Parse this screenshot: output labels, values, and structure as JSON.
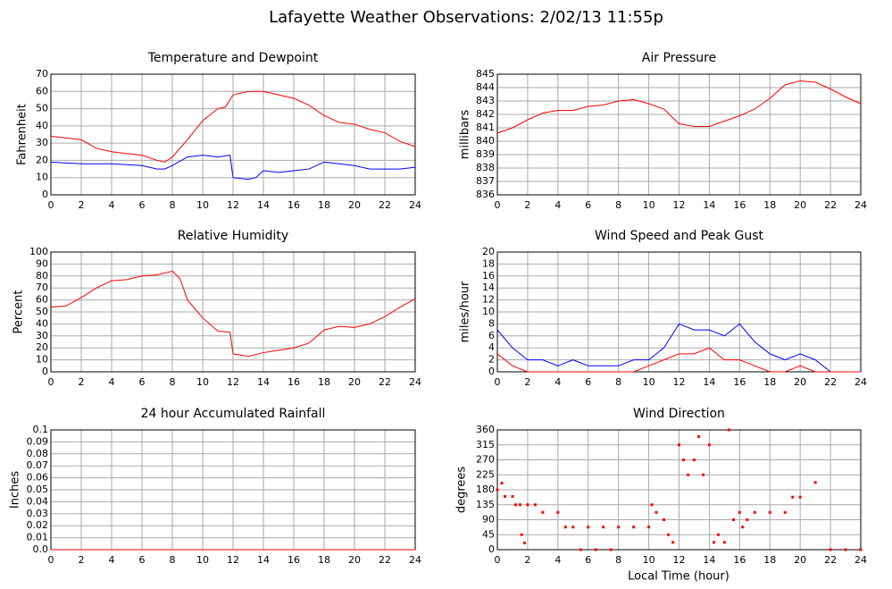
{
  "title": "Lafayette Weather Observations: 2/02/13 11:55p",
  "x_label": "Local Time (hour)",
  "chart_data": [
    {
      "type": "line",
      "title": "Temperature and Dewpoint",
      "y_label": "Fahrenheit",
      "xlim": [
        0,
        24
      ],
      "xticks": [
        0,
        2,
        4,
        6,
        8,
        10,
        12,
        14,
        16,
        18,
        20,
        22,
        24
      ],
      "ylim": [
        0,
        70
      ],
      "yticks": [
        0,
        10,
        20,
        30,
        40,
        50,
        60,
        70
      ],
      "grid": true,
      "series": [
        {
          "color": "#ff0000",
          "x": [
            0,
            1,
            2,
            3,
            4,
            5,
            6,
            7,
            7.5,
            8,
            9,
            10,
            11,
            11.5,
            12,
            13,
            14,
            15,
            16,
            17,
            18,
            19,
            20,
            21,
            22,
            23,
            24
          ],
          "values": [
            34,
            33,
            32,
            27,
            25,
            24,
            23,
            20,
            19,
            22,
            32,
            43,
            50,
            51,
            58,
            60,
            60,
            58,
            56,
            52,
            46,
            42,
            41,
            38,
            36,
            31,
            28
          ]
        },
        {
          "color": "#0000ff",
          "x": [
            0,
            2,
            4,
            6,
            7,
            7.5,
            8,
            9,
            10,
            11,
            11.8,
            12,
            13,
            13.5,
            14,
            15,
            16,
            17,
            18,
            19,
            20,
            21,
            22,
            23,
            24
          ],
          "values": [
            19,
            18,
            18,
            17,
            15,
            15,
            17,
            22,
            23,
            22,
            23,
            10,
            9,
            10,
            14,
            13,
            14,
            15,
            19,
            18,
            17,
            15,
            15,
            15,
            16
          ]
        }
      ]
    },
    {
      "type": "line",
      "title": "Air Pressure",
      "y_label": "millibars",
      "xlim": [
        0,
        24
      ],
      "xticks": [
        0,
        2,
        4,
        6,
        8,
        10,
        12,
        14,
        16,
        18,
        20,
        22,
        24
      ],
      "ylim": [
        836,
        845
      ],
      "yticks": [
        836,
        837,
        838,
        839,
        840,
        841,
        842,
        843,
        844,
        845
      ],
      "grid": true,
      "series": [
        {
          "color": "#ff0000",
          "x": [
            0,
            1,
            2,
            3,
            4,
            5,
            6,
            7,
            8,
            9,
            10,
            11,
            12,
            13,
            14,
            15,
            16,
            17,
            18,
            19,
            20,
            21,
            22,
            23,
            24
          ],
          "values": [
            840.6,
            841.0,
            841.6,
            842.1,
            842.3,
            842.3,
            842.6,
            842.7,
            843.0,
            843.1,
            842.8,
            842.4,
            841.3,
            841.1,
            841.1,
            841.5,
            841.9,
            842.4,
            843.2,
            844.2,
            844.5,
            844.4,
            843.9,
            843.3,
            842.8
          ]
        }
      ]
    },
    {
      "type": "line",
      "title": "Relative Humidity",
      "y_label": "Percent",
      "xlim": [
        0,
        24
      ],
      "xticks": [
        0,
        2,
        4,
        6,
        8,
        10,
        12,
        14,
        16,
        18,
        20,
        22,
        24
      ],
      "ylim": [
        0,
        100
      ],
      "yticks": [
        0,
        10,
        20,
        30,
        40,
        50,
        60,
        70,
        80,
        90,
        100
      ],
      "grid": true,
      "series": [
        {
          "color": "#ff0000",
          "x": [
            0,
            1,
            2,
            3,
            4,
            5,
            6,
            7,
            8,
            8.5,
            9,
            10,
            11,
            11.8,
            12,
            13,
            14,
            15,
            16,
            17,
            18,
            19,
            20,
            21,
            22,
            23,
            24
          ],
          "values": [
            54,
            55,
            62,
            70,
            76,
            77,
            80,
            81,
            84,
            78,
            60,
            45,
            34,
            33,
            15,
            13,
            16,
            18,
            20,
            24,
            35,
            38,
            37,
            40,
            46,
            54,
            61
          ]
        }
      ]
    },
    {
      "type": "line",
      "title": "Wind Speed and Peak Gust",
      "y_label": "miles/hour",
      "xlim": [
        0,
        24
      ],
      "xticks": [
        0,
        2,
        4,
        6,
        8,
        10,
        12,
        14,
        16,
        18,
        20,
        22,
        24
      ],
      "ylim": [
        0,
        20
      ],
      "yticks": [
        0,
        2,
        4,
        6,
        8,
        10,
        12,
        14,
        16,
        18,
        20
      ],
      "grid": true,
      "series": [
        {
          "color": "#0000ff",
          "x": [
            0,
            1,
            2,
            3,
            4,
            5,
            6,
            7,
            8,
            9,
            10,
            11,
            12,
            13,
            14,
            15,
            16,
            17,
            18,
            19,
            20,
            21,
            22,
            23,
            24
          ],
          "values": [
            7,
            4,
            2,
            2,
            1,
            2,
            1,
            1,
            1,
            2,
            2,
            4,
            8,
            7,
            7,
            6,
            8,
            5,
            3,
            2,
            3,
            2,
            0,
            0,
            0
          ]
        },
        {
          "color": "#ff0000",
          "x": [
            0,
            1,
            2,
            3,
            4,
            5,
            6,
            7,
            8,
            9,
            10,
            11,
            12,
            13,
            14,
            15,
            16,
            17,
            18,
            19,
            20,
            21,
            22,
            23,
            24
          ],
          "values": [
            3,
            1,
            0,
            0,
            0,
            0,
            0,
            0,
            0,
            0,
            1,
            2,
            3,
            3,
            4,
            2,
            2,
            1,
            0,
            0,
            1,
            0,
            0,
            0,
            0
          ]
        }
      ]
    },
    {
      "type": "line",
      "title": "24 hour Accumulated Rainfall",
      "y_label": "Inches",
      "xlim": [
        0,
        24
      ],
      "xticks": [
        0,
        2,
        4,
        6,
        8,
        10,
        12,
        14,
        16,
        18,
        20,
        22,
        24
      ],
      "ylim": [
        0,
        0.1
      ],
      "yticks": [
        {
          "value": 0,
          "label": "0.0"
        },
        0.01,
        0.02,
        0.03,
        0.04,
        0.05,
        0.06,
        0.07,
        0.08,
        0.09,
        0.1
      ],
      "grid": true,
      "series": [
        {
          "color": "#ff0000",
          "x": [
            0,
            24
          ],
          "values": [
            0,
            0
          ]
        }
      ]
    },
    {
      "type": "scatter",
      "title": "Wind Direction",
      "y_label": "degrees",
      "xlim": [
        0,
        24
      ],
      "xticks": [
        0,
        2,
        4,
        6,
        8,
        10,
        12,
        14,
        16,
        18,
        20,
        22,
        24
      ],
      "ylim": [
        0,
        360
      ],
      "yticks": [
        0,
        45,
        90,
        135,
        180,
        225,
        270,
        315,
        360
      ],
      "grid": true,
      "series": [
        {
          "color": "#ff0000",
          "x": [
            0,
            0.3,
            0.5,
            1,
            1.2,
            1.5,
            1.6,
            1.8,
            2,
            2.5,
            3,
            4,
            4.5,
            5,
            5.5,
            6,
            6.5,
            7,
            7.5,
            8,
            9,
            10,
            10.2,
            10.5,
            11,
            11.3,
            11.6,
            12,
            12.3,
            12.6,
            13,
            13.3,
            13.6,
            14,
            14.3,
            14.6,
            15,
            15.3,
            15.6,
            16,
            16.2,
            16.5,
            17,
            18,
            19,
            19.5,
            20,
            21,
            22,
            23,
            24
          ],
          "values": [
            180,
            200,
            160,
            160,
            135,
            135,
            45,
            20,
            135,
            135,
            112,
            112,
            68,
            68,
            0,
            68,
            0,
            68,
            0,
            68,
            68,
            68,
            135,
            112,
            90,
            45,
            22,
            315,
            270,
            225,
            270,
            340,
            225,
            315,
            22,
            45,
            22,
            360,
            90,
            112,
            68,
            90,
            112,
            112,
            112,
            158,
            158,
            202,
            0,
            0,
            0
          ]
        }
      ]
    }
  ]
}
